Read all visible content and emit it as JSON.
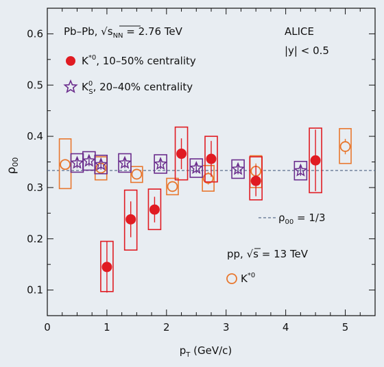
{
  "chart_data": {
    "type": "scatter",
    "xlabel_main": "p",
    "xlabel_sub": "T",
    "xlabel_unit": " (GeV/c)",
    "ylabel_main": "ρ",
    "ylabel_sub": "00",
    "xlim": [
      0,
      5.5
    ],
    "ylim": [
      0.05,
      0.65
    ],
    "x_ticks": [
      0,
      1,
      2,
      3,
      4,
      5
    ],
    "y_ticks": [
      0.1,
      0.2,
      0.3,
      0.4,
      0.5,
      0.6
    ],
    "grid": false,
    "reference_line": {
      "y": 0.3333,
      "style": "dashed",
      "color": "#5a6e8c",
      "label_main": "ρ",
      "label_sub": "00",
      "label_rest": " = 1/3"
    },
    "texts": {
      "system": "Pb–Pb, ",
      "sqrt": "√",
      "s": "s",
      "nn": "NN",
      "energy": " = 2.76 TeV",
      "experiment": "ALICE",
      "rapidity": "|y| < 0.5",
      "pp_system": "pp, ",
      "pp_energy": " = 13 TeV"
    },
    "colors": {
      "kstar_pbpb": "#e01b22",
      "k0s_pbpb": "#6a2c8c",
      "kstar_pp": "#e8772e",
      "text": "#111111",
      "background": "#e8edf2"
    },
    "series": [
      {
        "name_main": "K",
        "name_sup": "*0",
        "name_rest": ", 10–50% centrality",
        "marker": "filled-circle",
        "points": [
          {
            "x": 1.0,
            "y": 0.145,
            "stat": 0.05,
            "sys_low": 0.097,
            "sys_high": 0.195
          },
          {
            "x": 1.4,
            "y": 0.238,
            "stat": 0.035,
            "sys_low": 0.178,
            "sys_high": 0.295
          },
          {
            "x": 1.8,
            "y": 0.257,
            "stat": 0.025,
            "sys_low": 0.218,
            "sys_high": 0.297
          },
          {
            "x": 2.25,
            "y": 0.366,
            "stat": 0.03,
            "sys_low": 0.315,
            "sys_high": 0.418
          },
          {
            "x": 2.75,
            "y": 0.356,
            "stat": 0.035,
            "sys_low": 0.311,
            "sys_high": 0.4
          },
          {
            "x": 3.5,
            "y": 0.313,
            "stat": 0.03,
            "sys_low": 0.276,
            "sys_high": 0.36
          },
          {
            "x": 4.5,
            "y": 0.353,
            "stat": 0.06,
            "sys_low": 0.29,
            "sys_high": 0.416
          }
        ]
      },
      {
        "name_main": "K",
        "name_sup": "0",
        "name_sub": "S",
        "name_rest": ", 20–40% centrality",
        "marker": "open-star",
        "points": [
          {
            "x": 0.5,
            "y": 0.348,
            "stat": 0.01,
            "sys_low": 0.33,
            "sys_high": 0.366
          },
          {
            "x": 0.7,
            "y": 0.352,
            "stat": 0.01,
            "sys_low": 0.334,
            "sys_high": 0.37
          },
          {
            "x": 0.9,
            "y": 0.345,
            "stat": 0.01,
            "sys_low": 0.327,
            "sys_high": 0.363
          },
          {
            "x": 1.3,
            "y": 0.348,
            "stat": 0.01,
            "sys_low": 0.33,
            "sys_high": 0.366
          },
          {
            "x": 1.9,
            "y": 0.346,
            "stat": 0.01,
            "sys_low": 0.328,
            "sys_high": 0.364
          },
          {
            "x": 2.5,
            "y": 0.338,
            "stat": 0.01,
            "sys_low": 0.32,
            "sys_high": 0.356
          },
          {
            "x": 3.2,
            "y": 0.336,
            "stat": 0.01,
            "sys_low": 0.318,
            "sys_high": 0.354
          },
          {
            "x": 4.25,
            "y": 0.333,
            "stat": 0.01,
            "sys_low": 0.315,
            "sys_high": 0.351
          }
        ]
      },
      {
        "name_main": "K",
        "name_sup": "*0",
        "name_rest": "",
        "marker": "open-circle",
        "points": [
          {
            "x": 0.3,
            "y": 0.345,
            "stat": 0.01,
            "sys_low": 0.298,
            "sys_high": 0.395
          },
          {
            "x": 0.9,
            "y": 0.338,
            "stat": 0.01,
            "sys_low": 0.315,
            "sys_high": 0.36
          },
          {
            "x": 1.5,
            "y": 0.326,
            "stat": 0.008,
            "sys_low": 0.31,
            "sys_high": 0.341
          },
          {
            "x": 2.1,
            "y": 0.302,
            "stat": 0.008,
            "sys_low": 0.286,
            "sys_high": 0.318
          },
          {
            "x": 2.7,
            "y": 0.318,
            "stat": 0.012,
            "sys_low": 0.293,
            "sys_high": 0.343
          },
          {
            "x": 3.5,
            "y": 0.332,
            "stat": 0.015,
            "sys_low": 0.3,
            "sys_high": 0.362
          },
          {
            "x": 5.0,
            "y": 0.38,
            "stat": 0.015,
            "sys_low": 0.347,
            "sys_high": 0.415
          }
        ]
      }
    ]
  }
}
